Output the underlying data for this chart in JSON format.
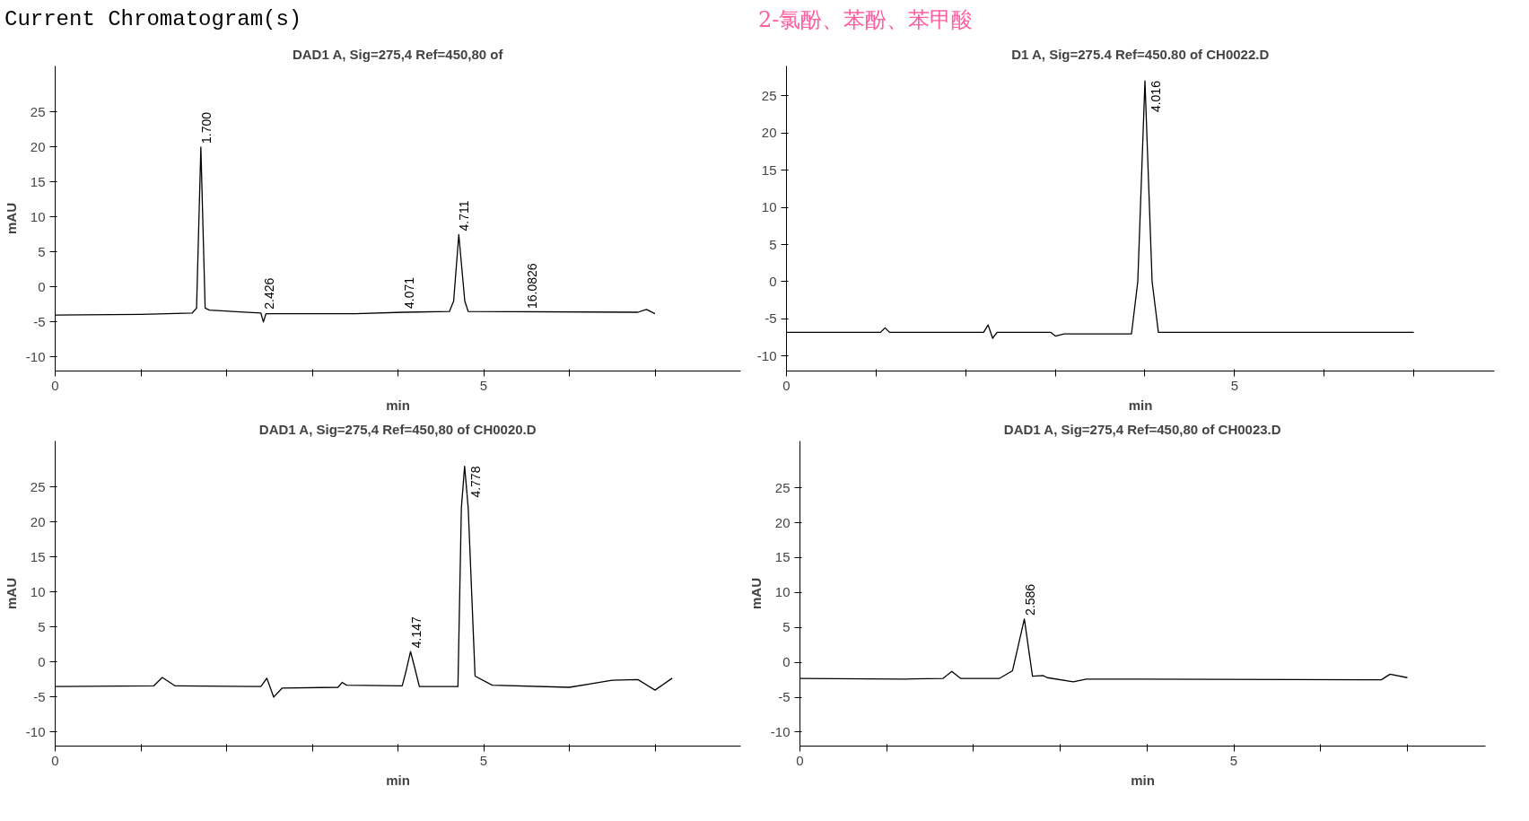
{
  "chart_data": [
    {
      "type": "line",
      "title": "DAD1 A, Sig=275,4 Ref=450,80 of",
      "xlabel": "min",
      "ylabel": "mAU",
      "xlim": [
        0,
        8
      ],
      "ylim": [
        -12,
        31.6
      ],
      "xticks": [
        0,
        {
          "value": 1,
          "label": null
        },
        {
          "value": 2,
          "label": null
        },
        {
          "value": 3,
          "label": null
        },
        {
          "value": 4,
          "label": null
        },
        5,
        {
          "value": 6,
          "label": null
        },
        {
          "value": 7,
          "label": null
        }
      ],
      "yticks": [
        -10,
        -5,
        0,
        5,
        10,
        15,
        20,
        25
      ],
      "grid": false,
      "series": [
        {
          "color": "#000000",
          "x": [
            0,
            1.0,
            1.6,
            1.65,
            1.7,
            1.75,
            1.8,
            2.4,
            2.43,
            2.46,
            3.5,
            4.07,
            4.6,
            4.65,
            4.71,
            4.78,
            4.82,
            6.8,
            6.9,
            7.0
          ],
          "values": [
            -4,
            -3.9,
            -3.7,
            -3,
            20,
            -3,
            -3.3,
            -3.7,
            -5,
            -3.8,
            -3.8,
            -3.6,
            -3.5,
            -2,
            7.5,
            -2,
            -3.5,
            -3.6,
            -3.2,
            -3.8
          ]
        }
      ],
      "annotations": [
        "Current Chromatogram(s)",
        {
          "text": "1.700",
          "x": 1.7,
          "y": 20
        },
        {
          "text": "2.426",
          "x": 2.43,
          "y": -3.7
        },
        {
          "text": "4.071",
          "x": 4.07,
          "y": -3.6
        },
        {
          "text": "4.711",
          "x": 4.71,
          "y": 7.5
        },
        {
          "text": "16.0826",
          "x": 5.5,
          "y": -3.6
        }
      ]
    },
    {
      "type": "line",
      "title": "D1 A, Sig=275.4 Ref=450.80 of CH0022.D",
      "xlabel": "min",
      "xlim": [
        0,
        7.9
      ],
      "ylim": [
        -12,
        29
      ],
      "xticks": [
        0,
        {
          "value": 1,
          "label": null
        },
        {
          "value": 2,
          "label": null
        },
        {
          "value": 3,
          "label": null
        },
        {
          "value": 4,
          "label": null
        },
        5,
        {
          "value": 6,
          "label": null
        },
        {
          "value": 7,
          "label": null
        }
      ],
      "yticks": [
        -10,
        -5,
        0,
        5,
        10,
        15,
        20,
        25
      ],
      "grid": false,
      "series": [
        {
          "color": "#000000",
          "x": [
            0,
            1.05,
            1.1,
            1.15,
            2.2,
            2.25,
            2.3,
            2.35,
            2.95,
            3.0,
            3.1,
            3.85,
            3.92,
            4.0,
            4.08,
            4.15,
            7.0
          ],
          "values": [
            -6.8,
            -6.8,
            -6.2,
            -6.8,
            -6.8,
            -5.8,
            -7.6,
            -6.8,
            -6.8,
            -7.3,
            -7,
            -7,
            0,
            27,
            0,
            -6.8,
            -6.8
          ]
        }
      ],
      "annotations": [
        "2-氯酚、苯酚、苯甲酸",
        {
          "text": "4.016",
          "x": 4.0,
          "y": 27
        }
      ]
    },
    {
      "type": "line",
      "title": "DAD1 A, Sig=275,4 Ref=450,80 of CH0020.D",
      "xlabel": "min",
      "ylabel": "mAU",
      "xlim": [
        0,
        8
      ],
      "ylim": [
        -12,
        31.6
      ],
      "xticks": [
        0,
        {
          "value": 1,
          "label": null
        },
        {
          "value": 2,
          "label": null
        },
        {
          "value": 3,
          "label": null
        },
        {
          "value": 4,
          "label": null
        },
        5,
        {
          "value": 6,
          "label": null
        },
        {
          "value": 7,
          "label": null
        }
      ],
      "yticks": [
        -10,
        -5,
        0,
        5,
        10,
        15,
        20,
        25
      ],
      "grid": false,
      "series": [
        {
          "color": "#000000",
          "x": [
            0,
            1.15,
            1.25,
            1.4,
            2.4,
            2.47,
            2.55,
            2.65,
            3.3,
            3.35,
            3.4,
            4.05,
            4.1,
            4.147,
            4.2,
            4.25,
            4.7,
            4.74,
            4.778,
            4.82,
            4.9,
            5.1,
            6.0,
            6.5,
            6.8,
            7.0,
            7.2
          ],
          "values": [
            -3.5,
            -3.4,
            -2.2,
            -3.4,
            -3.5,
            -2.3,
            -5,
            -3.7,
            -3.6,
            -2.9,
            -3.3,
            -3.4,
            -1,
            1.5,
            -1,
            -3.5,
            -3.5,
            22,
            28,
            22,
            -2,
            -3.3,
            -3.6,
            -2.6,
            -2.5,
            -4,
            -2.3
          ]
        }
      ],
      "annotations": [
        {
          "text": "4.147",
          "x": 4.147,
          "y": 1.5
        },
        {
          "text": "4.778",
          "x": 4.778,
          "y": 28
        }
      ]
    },
    {
      "type": "line",
      "title": "DAD1 A, Sig=275,4 Ref=450,80 of CH0023.D",
      "xlabel": "min",
      "ylabel": "mAU",
      "xlim": [
        0,
        7.9
      ],
      "ylim": [
        -12,
        31.7
      ],
      "xticks": [
        0,
        {
          "value": 1,
          "label": null
        },
        {
          "value": 2,
          "label": null
        },
        {
          "value": 3,
          "label": null
        },
        {
          "value": 4,
          "label": null
        },
        5,
        {
          "value": 6,
          "label": null
        },
        {
          "value": 7,
          "label": null
        }
      ],
      "yticks": [
        -10,
        -5,
        0,
        5,
        10,
        15,
        20,
        25
      ],
      "grid": false,
      "series": [
        {
          "color": "#000000",
          "x": [
            0,
            1.2,
            1.65,
            1.75,
            1.85,
            2.3,
            2.45,
            2.586,
            2.68,
            2.8,
            2.85,
            3.15,
            3.3,
            6.7,
            6.8,
            7.0
          ],
          "values": [
            -2.3,
            -2.4,
            -2.3,
            -1.3,
            -2.3,
            -2.3,
            -1.2,
            6.2,
            -2,
            -1.9,
            -2.2,
            -2.8,
            -2.4,
            -2.5,
            -1.7,
            -2.2
          ]
        }
      ],
      "annotations": [
        {
          "text": "2.586",
          "x": 2.586,
          "y": 6.2
        }
      ]
    }
  ]
}
